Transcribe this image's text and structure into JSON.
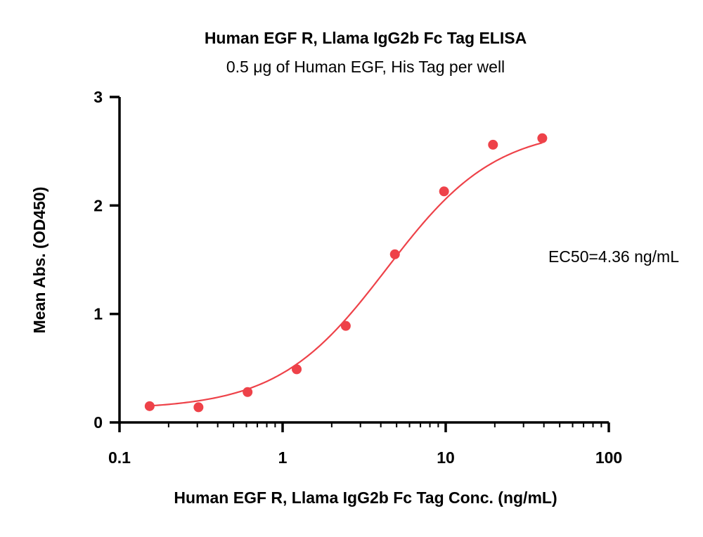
{
  "chart_data": {
    "type": "scatter",
    "title": "Human EGF R, Llama IgG2b Fc Tag ELISA",
    "subtitle": "0.5 μg of Human EGF, His Tag per well",
    "xlabel": "Human EGF R, Llama IgG2b Fc Tag Conc. (ng/mL)",
    "ylabel": "Mean Abs. (OD450)",
    "x_scale": "log",
    "xlim": [
      0.1,
      100
    ],
    "ylim": [
      0,
      3
    ],
    "x_ticks": [
      0.1,
      1,
      10,
      100
    ],
    "x_tick_labels": [
      "0.1",
      "1",
      "10",
      "100"
    ],
    "y_ticks": [
      0,
      1,
      2,
      3
    ],
    "y_tick_labels": [
      "0",
      "1",
      "2",
      "3"
    ],
    "grid": false,
    "series_color": "#ee4249",
    "annotation": "EC50=4.36 ng/mL",
    "series": [
      {
        "x": [
          0.153,
          0.305,
          0.61,
          1.22,
          2.44,
          4.88,
          9.77,
          19.5,
          39.1
        ],
        "y": [
          0.15,
          0.14,
          0.28,
          0.49,
          0.89,
          1.55,
          2.13,
          2.56,
          2.62
        ],
        "fit": {
          "model": "4PL",
          "bottom": 0.12,
          "top": 2.72,
          "ec50": 4.36,
          "hill": 1.3
        }
      }
    ]
  }
}
